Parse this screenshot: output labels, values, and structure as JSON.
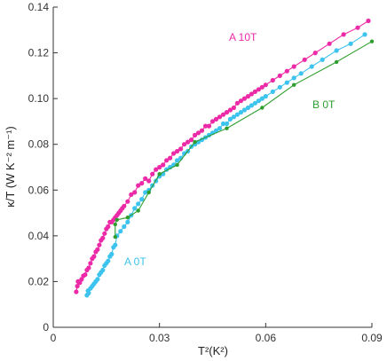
{
  "chart_data": {
    "type": "line",
    "title": "",
    "xlabel": "T²(K²)",
    "ylabel": "κ/T (W K⁻² m⁻¹)",
    "xlim": [
      0,
      0.09
    ],
    "ylim": [
      0,
      0.14
    ],
    "xticks": [
      0,
      0.03,
      0.06,
      0.09
    ],
    "xtick_labels": [
      "0",
      "0.03",
      "0.06",
      "0.09"
    ],
    "yticks": [
      0,
      0.02,
      0.04,
      0.06,
      0.08,
      0.1,
      0.12,
      0.14
    ],
    "ytick_labels": [
      "0",
      "0.02",
      "0.04",
      "0.06",
      "0.08",
      "0.10",
      "0.12",
      "0.14"
    ],
    "grid": false,
    "legend": "none",
    "series": [
      {
        "name": "A 10T",
        "color": "#ec2aa7",
        "marker_size": 2.6,
        "points": [
          [
            0.0065,
            0.0155
          ],
          [
            0.0068,
            0.018
          ],
          [
            0.007,
            0.02
          ],
          [
            0.0075,
            0.0195
          ],
          [
            0.008,
            0.021
          ],
          [
            0.0085,
            0.0225
          ],
          [
            0.009,
            0.023
          ],
          [
            0.0095,
            0.025
          ],
          [
            0.01,
            0.026
          ],
          [
            0.0105,
            0.028
          ],
          [
            0.011,
            0.03
          ],
          [
            0.0115,
            0.031
          ],
          [
            0.012,
            0.033
          ],
          [
            0.0125,
            0.034
          ],
          [
            0.013,
            0.036
          ],
          [
            0.0135,
            0.038
          ],
          [
            0.014,
            0.039
          ],
          [
            0.0145,
            0.041
          ],
          [
            0.015,
            0.043
          ],
          [
            0.0155,
            0.044
          ],
          [
            0.016,
            0.046
          ],
          [
            0.0165,
            0.046
          ],
          [
            0.017,
            0.047
          ],
          [
            0.0175,
            0.048
          ],
          [
            0.018,
            0.049
          ],
          [
            0.0185,
            0.05
          ],
          [
            0.019,
            0.051
          ],
          [
            0.0195,
            0.052
          ],
          [
            0.02,
            0.053
          ],
          [
            0.021,
            0.055
          ],
          [
            0.022,
            0.058
          ],
          [
            0.023,
            0.059
          ],
          [
            0.024,
            0.062
          ],
          [
            0.025,
            0.063
          ],
          [
            0.026,
            0.065
          ],
          [
            0.027,
            0.064
          ],
          [
            0.028,
            0.067
          ],
          [
            0.029,
            0.069
          ],
          [
            0.03,
            0.07
          ],
          [
            0.031,
            0.071
          ],
          [
            0.032,
            0.073
          ],
          [
            0.033,
            0.074
          ],
          [
            0.034,
            0.076
          ],
          [
            0.035,
            0.077
          ],
          [
            0.036,
            0.078
          ],
          [
            0.037,
            0.08
          ],
          [
            0.038,
            0.081
          ],
          [
            0.039,
            0.082
          ],
          [
            0.04,
            0.084
          ],
          [
            0.041,
            0.085
          ],
          [
            0.042,
            0.086
          ],
          [
            0.043,
            0.088
          ],
          [
            0.044,
            0.088
          ],
          [
            0.045,
            0.09
          ],
          [
            0.046,
            0.091
          ],
          [
            0.047,
            0.092
          ],
          [
            0.048,
            0.093
          ],
          [
            0.049,
            0.094
          ],
          [
            0.05,
            0.095
          ],
          [
            0.051,
            0.096
          ],
          [
            0.052,
            0.098
          ],
          [
            0.053,
            0.099
          ],
          [
            0.054,
            0.1
          ],
          [
            0.055,
            0.101
          ],
          [
            0.056,
            0.102
          ],
          [
            0.057,
            0.103
          ],
          [
            0.058,
            0.104
          ],
          [
            0.059,
            0.105
          ],
          [
            0.06,
            0.106
          ],
          [
            0.062,
            0.108
          ],
          [
            0.064,
            0.11
          ],
          [
            0.066,
            0.112
          ],
          [
            0.068,
            0.114
          ],
          [
            0.071,
            0.117
          ],
          [
            0.074,
            0.12
          ],
          [
            0.078,
            0.124
          ],
          [
            0.082,
            0.128
          ],
          [
            0.086,
            0.131
          ],
          [
            0.089,
            0.134
          ]
        ]
      },
      {
        "name": "A 0T",
        "color": "#3cc3ee",
        "marker_size": 2.6,
        "points": [
          [
            0.0095,
            0.014
          ],
          [
            0.0098,
            0.016
          ],
          [
            0.01,
            0.015
          ],
          [
            0.0105,
            0.017
          ],
          [
            0.011,
            0.018
          ],
          [
            0.0115,
            0.019
          ],
          [
            0.012,
            0.02
          ],
          [
            0.0125,
            0.021
          ],
          [
            0.013,
            0.023
          ],
          [
            0.0135,
            0.024
          ],
          [
            0.014,
            0.025
          ],
          [
            0.0145,
            0.027
          ],
          [
            0.015,
            0.028
          ],
          [
            0.0155,
            0.029
          ],
          [
            0.016,
            0.031
          ],
          [
            0.0165,
            0.032
          ],
          [
            0.017,
            0.035
          ],
          [
            0.0175,
            0.036
          ],
          [
            0.018,
            0.04
          ],
          [
            0.019,
            0.042
          ],
          [
            0.02,
            0.044
          ],
          [
            0.021,
            0.046
          ],
          [
            0.022,
            0.049
          ],
          [
            0.023,
            0.052
          ],
          [
            0.024,
            0.054
          ],
          [
            0.025,
            0.056
          ],
          [
            0.026,
            0.059
          ],
          [
            0.027,
            0.06
          ],
          [
            0.028,
            0.062
          ],
          [
            0.029,
            0.064
          ],
          [
            0.03,
            0.066
          ],
          [
            0.031,
            0.067
          ],
          [
            0.032,
            0.069
          ],
          [
            0.033,
            0.07
          ],
          [
            0.034,
            0.071
          ],
          [
            0.035,
            0.073
          ],
          [
            0.036,
            0.074
          ],
          [
            0.037,
            0.076
          ],
          [
            0.038,
            0.077
          ],
          [
            0.039,
            0.079
          ],
          [
            0.04,
            0.08
          ],
          [
            0.041,
            0.081
          ],
          [
            0.042,
            0.082
          ],
          [
            0.043,
            0.083
          ],
          [
            0.044,
            0.084
          ],
          [
            0.045,
            0.085
          ],
          [
            0.046,
            0.086
          ],
          [
            0.047,
            0.087
          ],
          [
            0.048,
            0.089
          ],
          [
            0.049,
            0.089
          ],
          [
            0.05,
            0.091
          ],
          [
            0.051,
            0.092
          ],
          [
            0.052,
            0.093
          ],
          [
            0.053,
            0.094
          ],
          [
            0.054,
            0.095
          ],
          [
            0.055,
            0.096
          ],
          [
            0.056,
            0.097
          ],
          [
            0.057,
            0.098
          ],
          [
            0.058,
            0.099
          ],
          [
            0.059,
            0.1
          ],
          [
            0.06,
            0.101
          ],
          [
            0.062,
            0.103
          ],
          [
            0.064,
            0.105
          ],
          [
            0.066,
            0.107
          ],
          [
            0.068,
            0.109
          ],
          [
            0.07,
            0.111
          ],
          [
            0.073,
            0.114
          ],
          [
            0.076,
            0.117
          ],
          [
            0.08,
            0.121
          ],
          [
            0.084,
            0.124
          ],
          [
            0.088,
            0.128
          ]
        ]
      },
      {
        "name": "B 0T",
        "color": "#2e9e2e",
        "marker_size": 2.2,
        "points": [
          [
            0.0175,
            0.0395
          ],
          [
            0.0175,
            0.045
          ],
          [
            0.018,
            0.047
          ],
          [
            0.021,
            0.048
          ],
          [
            0.024,
            0.051
          ],
          [
            0.027,
            0.059
          ],
          [
            0.03,
            0.067
          ],
          [
            0.035,
            0.071
          ],
          [
            0.04,
            0.081
          ],
          [
            0.049,
            0.087
          ],
          [
            0.059,
            0.096
          ],
          [
            0.068,
            0.106
          ],
          [
            0.08,
            0.116
          ],
          [
            0.09,
            0.125
          ]
        ]
      }
    ]
  },
  "labels": {
    "a10t": "A 10T",
    "a0t": "A 0T",
    "b0t": "B 0T"
  }
}
